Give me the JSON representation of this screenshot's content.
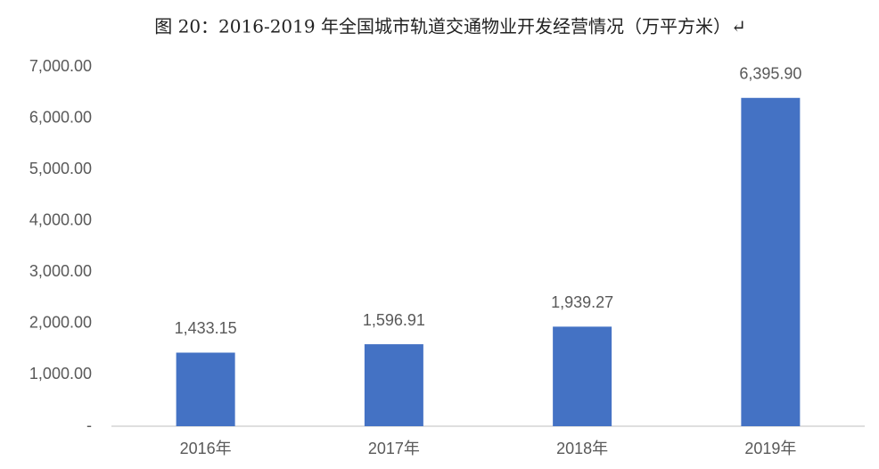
{
  "chart_data": {
    "type": "bar",
    "title": "图 20：2016-2019 年全国城市轨道交通物业开发经营情况（万平方米）↵",
    "categories": [
      "2016年",
      "2017年",
      "2018年",
      "2019年"
    ],
    "values": [
      1433.15,
      1596.91,
      1939.27,
      6395.9
    ],
    "value_labels": [
      "1,433.15",
      "1,596.91",
      "1,939.27",
      "6,395.90"
    ],
    "color": "#4472c4",
    "ylim": [
      0,
      7000
    ],
    "yticks": [
      {
        "value": 0,
        "label": "-"
      },
      {
        "value": 1000,
        "label": "1,000.00"
      },
      {
        "value": 2000,
        "label": "2,000.00"
      },
      {
        "value": 3000,
        "label": "3,000.00"
      },
      {
        "value": 4000,
        "label": "4,000.00"
      },
      {
        "value": 5000,
        "label": "5,000.00"
      },
      {
        "value": 6000,
        "label": "6,000.00"
      },
      {
        "value": 7000,
        "label": "7,000.00"
      }
    ],
    "grid": false
  }
}
